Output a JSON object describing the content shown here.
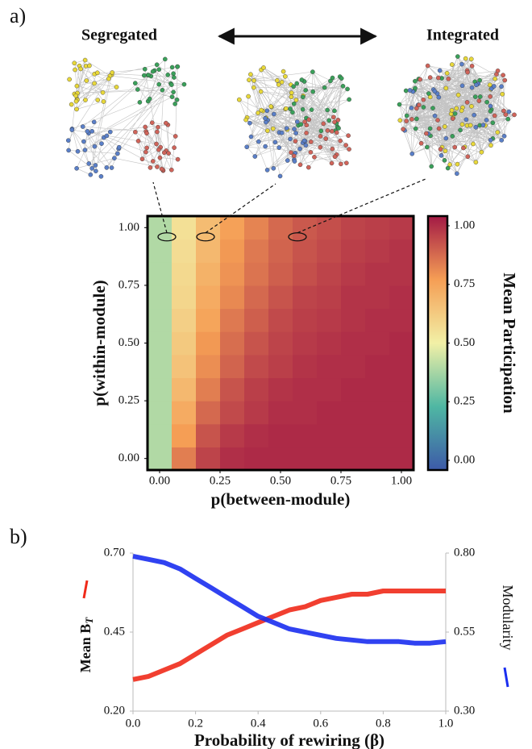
{
  "chart_data": [
    {
      "type": "heatmap",
      "panel_label": "a)",
      "network_labels": [
        "Segregated",
        "Integrated"
      ],
      "xlabel": "p(between-module)",
      "ylabel": "p(within-module)",
      "colorbar_label": "Mean Participation",
      "x": [
        0,
        0.1,
        0.2,
        0.3,
        0.4,
        0.5,
        0.6,
        0.7,
        0.8,
        0.9,
        1.0
      ],
      "y": [
        0,
        0.1,
        0.2,
        0.3,
        0.4,
        0.5,
        0.6,
        0.7,
        0.8,
        0.9,
        1.0
      ],
      "values": [
        [
          0.4,
          0.81,
          0.92,
          0.96,
          0.97,
          0.97,
          0.97,
          0.97,
          0.97,
          0.97,
          0.97
        ],
        [
          0.4,
          0.75,
          0.89,
          0.94,
          0.96,
          0.97,
          0.97,
          0.97,
          0.97,
          0.97,
          0.97
        ],
        [
          0.4,
          0.71,
          0.85,
          0.91,
          0.94,
          0.96,
          0.96,
          0.97,
          0.97,
          0.97,
          0.97
        ],
        [
          0.4,
          0.67,
          0.81,
          0.89,
          0.93,
          0.95,
          0.96,
          0.96,
          0.97,
          0.97,
          0.97
        ],
        [
          0.4,
          0.64,
          0.78,
          0.86,
          0.91,
          0.93,
          0.95,
          0.96,
          0.96,
          0.97,
          0.97
        ],
        [
          0.4,
          0.62,
          0.76,
          0.84,
          0.89,
          0.92,
          0.94,
          0.95,
          0.96,
          0.96,
          0.97
        ],
        [
          0.4,
          0.6,
          0.73,
          0.82,
          0.87,
          0.91,
          0.93,
          0.94,
          0.95,
          0.96,
          0.96
        ],
        [
          0.4,
          0.58,
          0.71,
          0.79,
          0.85,
          0.89,
          0.92,
          0.93,
          0.95,
          0.95,
          0.96
        ],
        [
          0.4,
          0.57,
          0.69,
          0.77,
          0.83,
          0.87,
          0.9,
          0.92,
          0.94,
          0.95,
          0.95
        ],
        [
          0.4,
          0.56,
          0.67,
          0.76,
          0.82,
          0.86,
          0.89,
          0.91,
          0.93,
          0.94,
          0.95
        ],
        [
          0.4,
          0.55,
          0.66,
          0.74,
          0.8,
          0.85,
          0.88,
          0.9,
          0.92,
          0.93,
          0.94
        ]
      ],
      "xlim": [
        -0.05,
        1.05
      ],
      "ylim": [
        -0.05,
        1.05
      ],
      "xticks": [
        {
          "value": 0,
          "label": "0.00"
        },
        {
          "value": 0.25,
          "label": "0.25"
        },
        {
          "value": 0.5,
          "label": "0.50"
        },
        {
          "value": 0.75,
          "label": "0.75"
        },
        {
          "value": 1,
          "label": "1.00"
        }
      ],
      "yticks": [
        {
          "value": 0,
          "label": "0.00"
        },
        {
          "value": 0.25,
          "label": "0.25"
        },
        {
          "value": 0.5,
          "label": "0.50"
        },
        {
          "value": 0.75,
          "label": "0.75"
        },
        {
          "value": 1,
          "label": "1.00"
        }
      ],
      "clim": [
        0,
        1
      ],
      "cticks": [
        {
          "value": 0,
          "label": "0.00"
        },
        {
          "value": 0.25,
          "label": "0.25"
        },
        {
          "value": 0.5,
          "label": "0.50"
        },
        {
          "value": 0.75,
          "label": "0.75"
        },
        {
          "value": 1,
          "label": "1.00"
        }
      ],
      "colorscale": [
        "#3d5aa8",
        "#4fb7a3",
        "#f2f0a6",
        "#f59e55",
        "#a31a45"
      ],
      "highlights": {
        "x": [
          0.03,
          0.19,
          0.57
        ],
        "y": [
          0.96,
          0.96,
          0.96
        ]
      }
    },
    {
      "type": "line",
      "panel_label": "b)",
      "xlabel": "Probability of rewiring (β)",
      "ylabel": "Mean B",
      "ylabel_subscript": "T",
      "y2label": "Modularity",
      "x": [
        0,
        0.05,
        0.1,
        0.15,
        0.2,
        0.25,
        0.3,
        0.35,
        0.4,
        0.45,
        0.5,
        0.55,
        0.6,
        0.65,
        0.7,
        0.75,
        0.8,
        0.85,
        0.9,
        0.95,
        1.0
      ],
      "series": [
        {
          "color": "#f02a1a",
          "axis": "y",
          "values": [
            0.3,
            0.31,
            0.33,
            0.35,
            0.38,
            0.41,
            0.44,
            0.46,
            0.48,
            0.5,
            0.52,
            0.53,
            0.55,
            0.56,
            0.57,
            0.57,
            0.58,
            0.58,
            0.58,
            0.58,
            0.58
          ]
        },
        {
          "color": "#1a2ef0",
          "axis": "y2",
          "values": [
            0.79,
            0.78,
            0.77,
            0.75,
            0.72,
            0.69,
            0.66,
            0.63,
            0.6,
            0.58,
            0.56,
            0.55,
            0.54,
            0.53,
            0.525,
            0.52,
            0.52,
            0.52,
            0.515,
            0.515,
            0.52
          ]
        }
      ],
      "xlim": [
        0,
        1
      ],
      "ylim": [
        0.2,
        0.7
      ],
      "y2lim": [
        0.3,
        0.8
      ],
      "xticks": [
        {
          "value": 0,
          "label": "0.0"
        },
        0.2,
        0.4,
        0.6,
        0.8,
        {
          "value": 1,
          "label": "1.0"
        }
      ],
      "yticks": [
        {
          "value": 0.2,
          "label": "0.20"
        },
        0.45,
        {
          "value": 0.7,
          "label": "0.70"
        }
      ],
      "y2ticks": [
        {
          "value": 0.3,
          "label": "0.30"
        },
        0.55,
        {
          "value": 0.8,
          "label": "0.80"
        }
      ],
      "grid": false
    }
  ]
}
